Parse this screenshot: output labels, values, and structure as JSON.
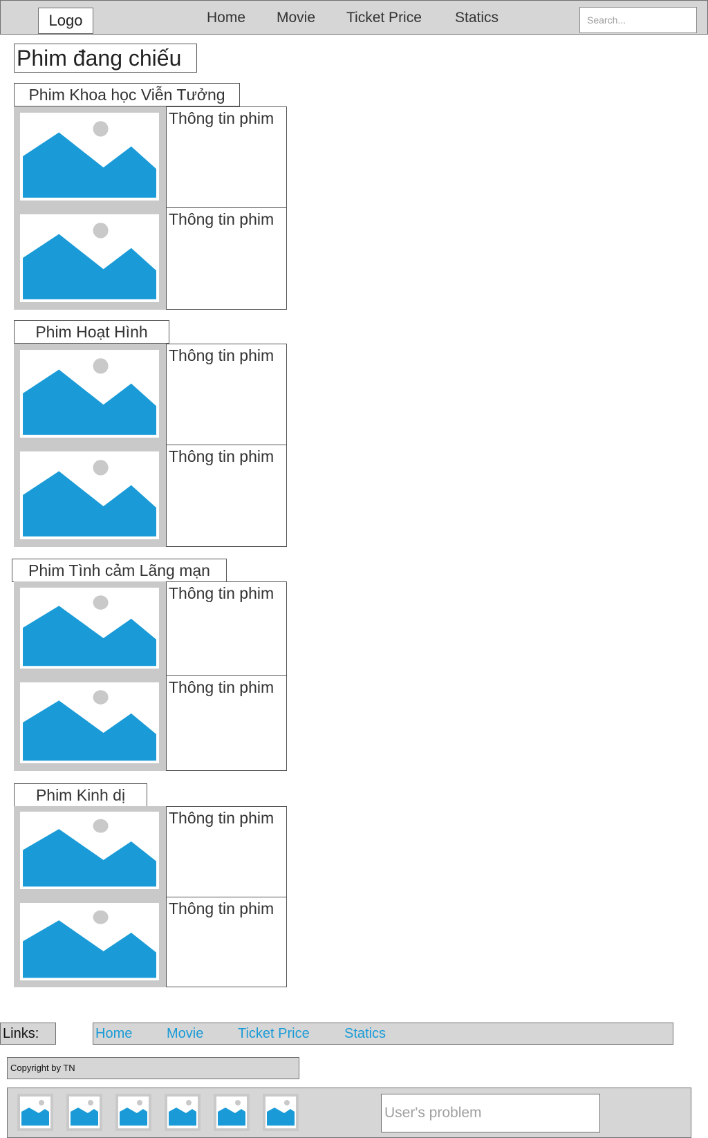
{
  "header": {
    "logo": "Logo",
    "nav": [
      "Home",
      "Movie",
      "Ticket Price",
      "Statics"
    ],
    "search_placeholder": "Search..."
  },
  "page_title": "Phim đang chiếu",
  "categories": [
    {
      "label": "Phim Khoa học Viễn Tưởng",
      "info": [
        "Thông tin phim",
        "Thông tin phim"
      ]
    },
    {
      "label": "Phim Hoạt Hình",
      "info": [
        "Thông tin phim",
        "Thông tin phim"
      ]
    },
    {
      "label": "Phim Tình cảm Lãng mạn",
      "info": [
        "Thông tin phim",
        "Thông tin phim"
      ]
    },
    {
      "label": "Phim Kinh dị",
      "info": [
        "Thông tin phim",
        "Thông tin phim"
      ]
    }
  ],
  "footer": {
    "links_label": "Links:",
    "links": [
      "Home",
      "Movie",
      "Ticket Price",
      "Statics"
    ],
    "copyright": "Copyright by TN",
    "feedback_placeholder": "User's problem"
  },
  "colors": {
    "bar_gray": "#d6d6d6",
    "panel_gray": "#c9c9c9",
    "image_blue": "#1a9bd7",
    "link_blue": "#1a9bd7"
  },
  "icons": {
    "image_placeholder": "image-placeholder-icon"
  }
}
